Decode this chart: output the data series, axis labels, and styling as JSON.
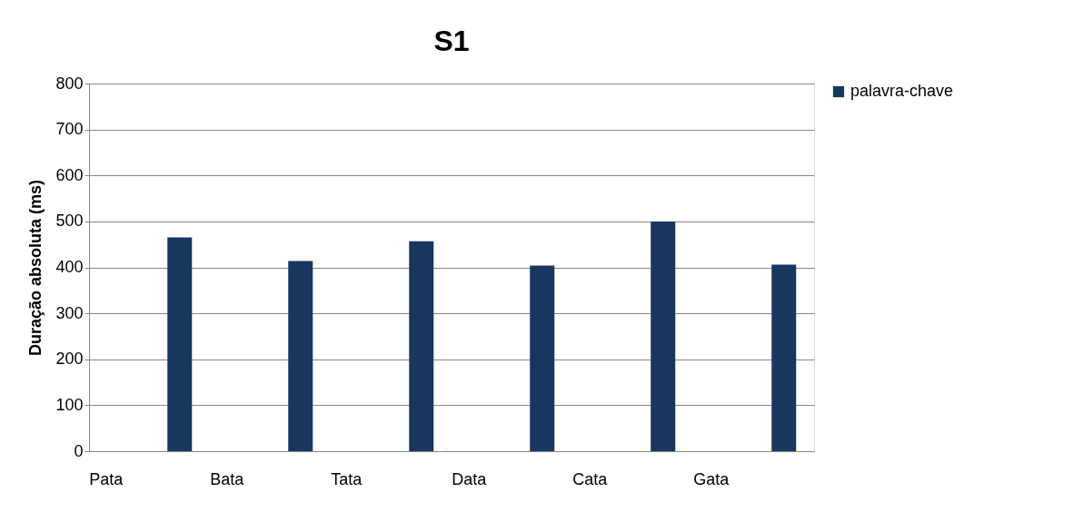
{
  "chart_data": {
    "type": "bar",
    "title": "S1",
    "ylabel": "Duração absoluta (ms)",
    "categories": [
      "Pata",
      null,
      "Bata",
      null,
      "Tata",
      null,
      "Data",
      null,
      "Cata",
      null,
      "Gata",
      null
    ],
    "series": [
      {
        "name": "palavra-chave",
        "color": "#17375e",
        "values": [
          null,
          465,
          null,
          414,
          null,
          457,
          null,
          404,
          null,
          500,
          null,
          406
        ]
      }
    ],
    "ylim": [
      0,
      800
    ],
    "yticks": [
      0,
      100,
      200,
      300,
      400,
      500,
      600,
      700,
      800
    ],
    "grid": "y",
    "legend": "right"
  }
}
